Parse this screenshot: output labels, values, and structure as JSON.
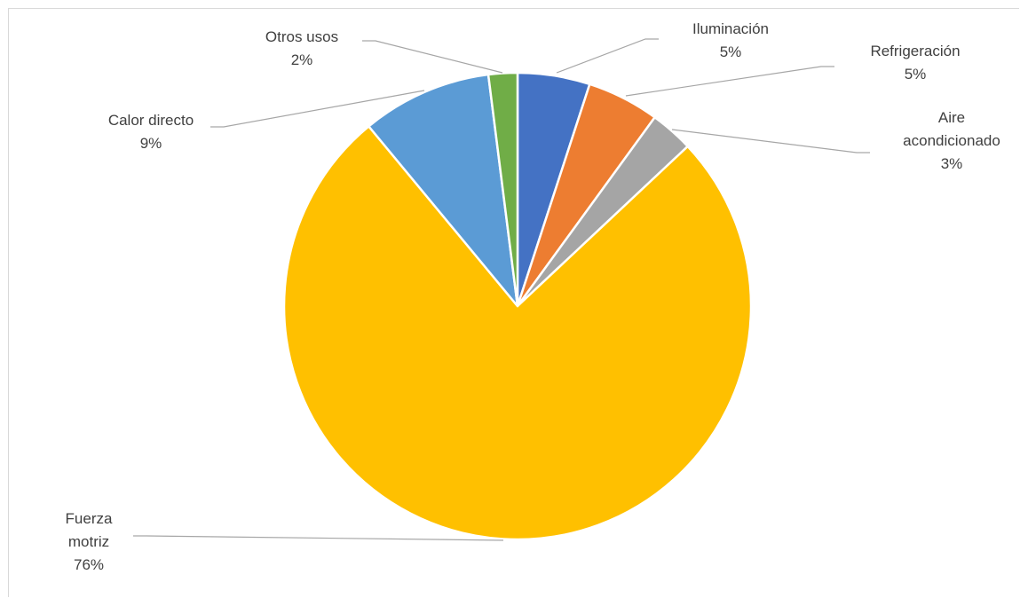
{
  "chart_data": {
    "type": "pie",
    "title": "",
    "start_angle_deg": 0,
    "direction": "clockwise",
    "slices": [
      {
        "label": "Iluminación",
        "lines": [
          "Iluminación"
        ],
        "value_label": "5%",
        "value": 5,
        "color": "#4472C4"
      },
      {
        "label": "Refrigeración",
        "lines": [
          "Refrigeración"
        ],
        "value_label": "5%",
        "value": 5,
        "color": "#ED7D31"
      },
      {
        "label": "Aire acondicionado",
        "lines": [
          "Aire",
          "acondicionado"
        ],
        "value_label": "3%",
        "value": 3,
        "color": "#A5A5A5"
      },
      {
        "label": "Fuerza motriz",
        "lines": [
          "Fuerza",
          "motriz"
        ],
        "value_label": "76%",
        "value": 76,
        "color": "#FFC000"
      },
      {
        "label": "Calor directo",
        "lines": [
          "Calor directo"
        ],
        "value_label": "9%",
        "value": 9,
        "color": "#5B9BD5"
      },
      {
        "label": "Otros usos",
        "lines": [
          "Otros usos"
        ],
        "value_label": "2%",
        "value": 2,
        "color": "#70AD47"
      }
    ],
    "legend": "none",
    "leader_line_color": "#a6a6a6",
    "label_color": "#404040"
  }
}
